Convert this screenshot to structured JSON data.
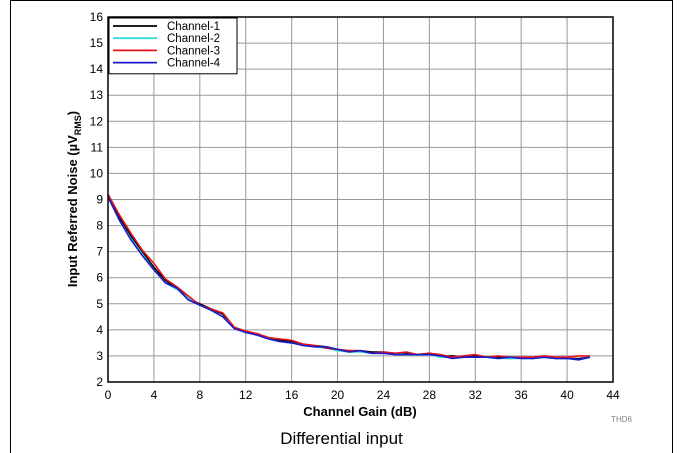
{
  "chart_data": {
    "type": "line",
    "xlabel": "Channel Gain (dB)",
    "ylabel_main": "Input Referred Noise (µV",
    "ylabel_sub": "RMS",
    "ylabel_close": ")",
    "xlim": [
      0,
      44
    ],
    "ylim": [
      2,
      16
    ],
    "xticks": [
      0,
      4,
      8,
      12,
      16,
      20,
      24,
      28,
      32,
      36,
      40,
      44
    ],
    "yticks": [
      2,
      3,
      4,
      5,
      6,
      7,
      8,
      9,
      10,
      11,
      12,
      13,
      14,
      15,
      16
    ],
    "grid": true,
    "legend_position": "top-left",
    "x": [
      0,
      1,
      2,
      3,
      4,
      5,
      6,
      7,
      8,
      9,
      10,
      11,
      12,
      13,
      14,
      15,
      16,
      17,
      18,
      19,
      20,
      21,
      22,
      23,
      24,
      25,
      26,
      27,
      28,
      29,
      30,
      31,
      32,
      33,
      34,
      35,
      36,
      37,
      38,
      39,
      40,
      41,
      42
    ],
    "series": [
      {
        "name": "Channel-1",
        "color": "#000000",
        "values": [
          9.2,
          8.3,
          7.6,
          7.0,
          6.4,
          5.9,
          5.6,
          5.2,
          5.0,
          4.8,
          4.6,
          4.1,
          3.95,
          3.85,
          3.7,
          3.6,
          3.55,
          3.45,
          3.4,
          3.35,
          3.25,
          3.2,
          3.2,
          3.15,
          3.15,
          3.1,
          3.1,
          3.05,
          3.1,
          3.0,
          3.0,
          2.95,
          3.0,
          2.95,
          2.95,
          2.9,
          2.95,
          2.9,
          2.95,
          2.9,
          2.9,
          2.9,
          2.95
        ]
      },
      {
        "name": "Channel-2",
        "color": "#33dddd",
        "values": [
          9.1,
          8.2,
          7.5,
          6.9,
          6.3,
          5.8,
          5.55,
          5.2,
          4.95,
          4.75,
          4.5,
          4.1,
          3.9,
          3.8,
          3.65,
          3.55,
          3.5,
          3.4,
          3.35,
          3.3,
          3.2,
          3.15,
          3.15,
          3.1,
          3.1,
          3.1,
          3.05,
          3.05,
          3.05,
          2.95,
          2.95,
          2.95,
          2.95,
          2.95,
          2.9,
          2.9,
          2.9,
          2.9,
          2.95,
          2.9,
          2.9,
          2.85,
          2.95
        ]
      },
      {
        "name": "Channel-3",
        "color": "#e8101a",
        "values": [
          9.2,
          8.4,
          7.7,
          7.05,
          6.55,
          5.95,
          5.65,
          5.3,
          4.95,
          4.8,
          4.65,
          4.1,
          3.95,
          3.85,
          3.7,
          3.65,
          3.6,
          3.45,
          3.4,
          3.3,
          3.25,
          3.2,
          3.2,
          3.1,
          3.15,
          3.1,
          3.15,
          3.05,
          3.1,
          3.05,
          2.95,
          3.0,
          3.05,
          2.95,
          3.0,
          2.95,
          2.95,
          2.95,
          3.0,
          2.95,
          2.95,
          3.0,
          3.0
        ]
      },
      {
        "name": "Channel-4",
        "color": "#1a1acc",
        "values": [
          9.1,
          8.2,
          7.45,
          6.85,
          6.3,
          5.8,
          5.6,
          5.15,
          4.95,
          4.75,
          4.5,
          4.05,
          3.9,
          3.8,
          3.65,
          3.55,
          3.5,
          3.4,
          3.35,
          3.35,
          3.25,
          3.15,
          3.2,
          3.1,
          3.1,
          3.05,
          3.05,
          3.05,
          3.05,
          3.0,
          2.9,
          2.95,
          2.95,
          2.95,
          2.9,
          2.95,
          2.9,
          2.9,
          2.95,
          2.9,
          2.9,
          2.85,
          2.95
        ]
      }
    ],
    "chart_id": "THD6"
  },
  "caption": "Differential input"
}
